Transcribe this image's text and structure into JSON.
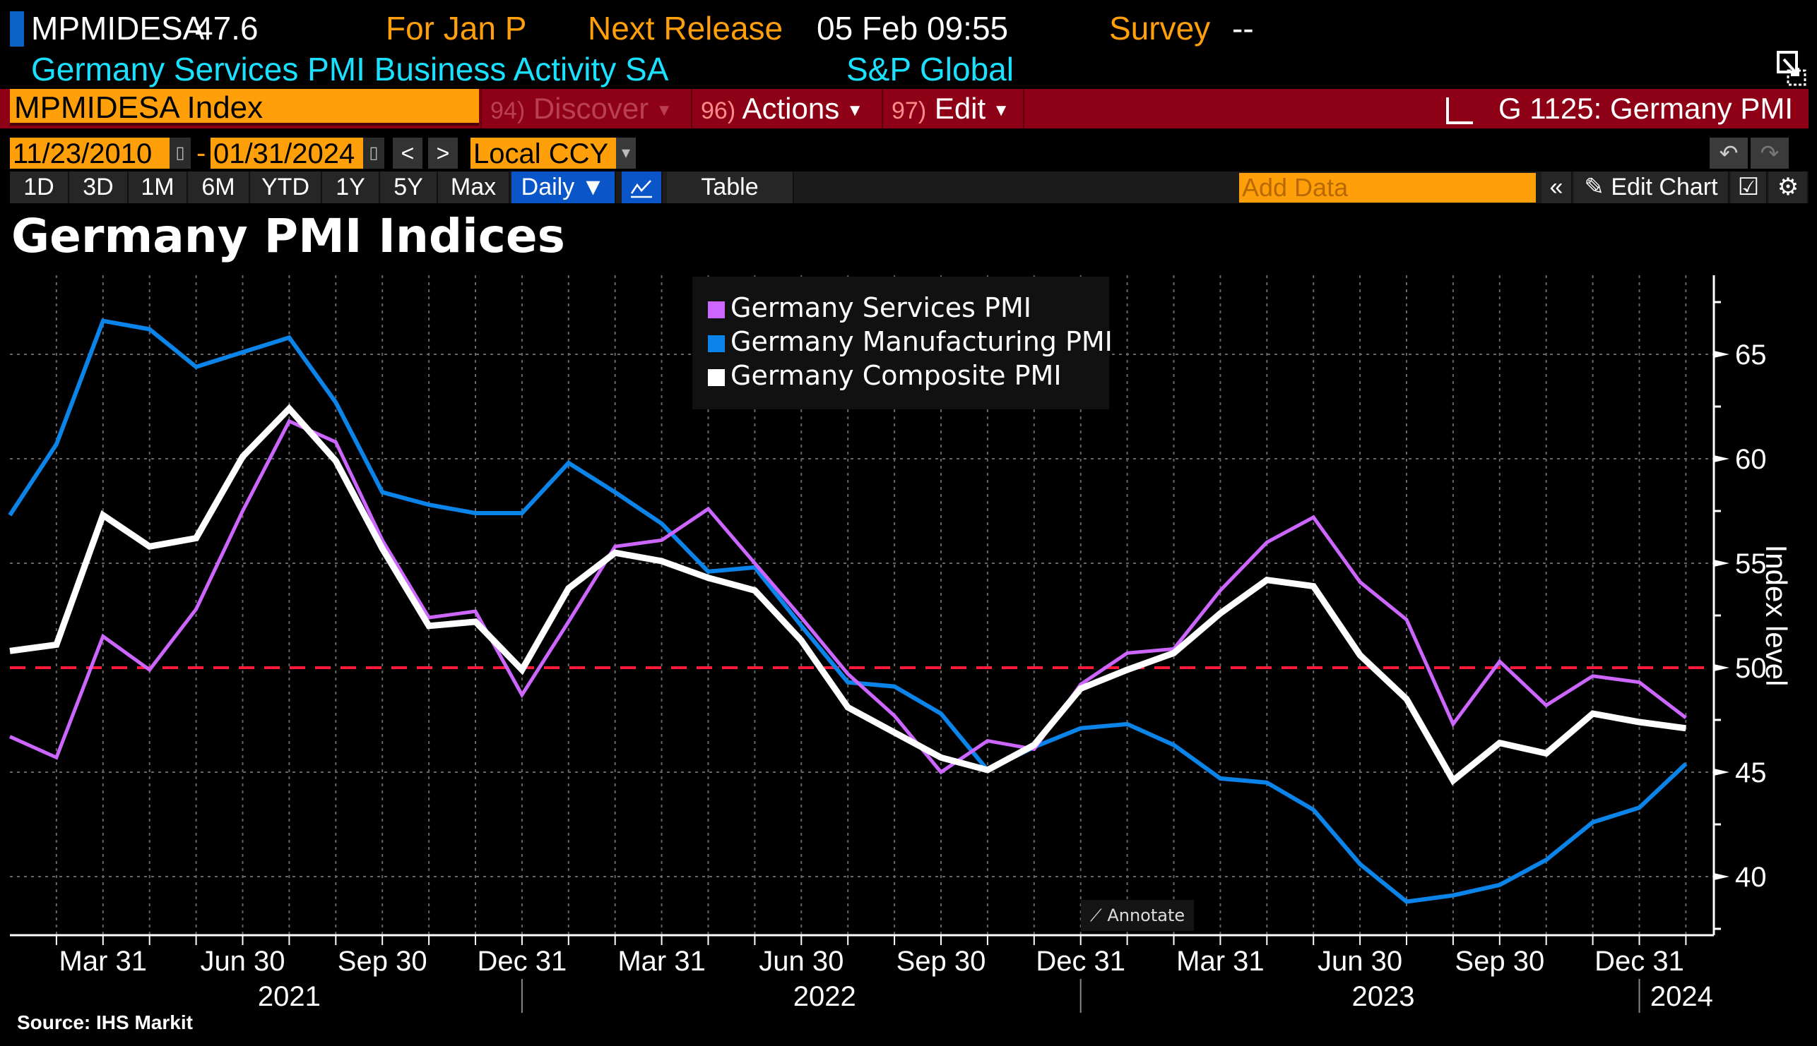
{
  "header": {
    "ticker_short": "MPMIDESA",
    "last_value": "47.6",
    "period_label": "For Jan P",
    "next_release_label": "Next Release",
    "next_release_value": "05 Feb 09:55",
    "survey_label": "Survey",
    "survey_value": "--",
    "description": "Germany Services PMI Business Activity SA",
    "source_vendor": "S&P Global"
  },
  "command_bar": {
    "ticker_input": "MPMIDESA Index",
    "discover": {
      "num": "94)",
      "label": "Discover"
    },
    "actions": {
      "num": "96)",
      "label": "Actions"
    },
    "edit": {
      "num": "97)",
      "label": "Edit"
    },
    "graph_title": "G 1125: Germany PMI"
  },
  "date_range": {
    "start": "11/23/2010",
    "end": "01/31/2024",
    "separator": "-",
    "currency": "Local CCY",
    "prev": "<",
    "next": ">"
  },
  "range_buttons": [
    "1D",
    "3D",
    "1M",
    "6M",
    "YTD",
    "1Y",
    "5Y",
    "Max"
  ],
  "frequency": "Daily ▼",
  "table_label": "Table",
  "add_data_placeholder": "Add Data",
  "collapse_label": "«",
  "edit_chart_label": "Edit Chart",
  "annotate_label": "Annotate",
  "source_label": "Source: IHS Markit",
  "colors": {
    "services": "#cc66ff",
    "manufacturing": "#0a84e8",
    "composite": "#ffffff",
    "threshold": "#ff1a3c",
    "accent_orange": "#ff9f0a",
    "bar_red": "#8e0015"
  },
  "chart_data": {
    "type": "line",
    "title": "Germany PMI Indices",
    "xlabel": "",
    "ylabel": "Index level",
    "ylim": [
      37.5,
      68
    ],
    "yticks": [
      40,
      45,
      50,
      55,
      60,
      65
    ],
    "grid": true,
    "legend_position": "top-center",
    "reference_line": {
      "y": 50,
      "style": "dashed",
      "color": "#ff1a3c"
    },
    "x": [
      "2021-01",
      "2021-02",
      "2021-03",
      "2021-04",
      "2021-05",
      "2021-06",
      "2021-07",
      "2021-08",
      "2021-09",
      "2021-10",
      "2021-11",
      "2021-12",
      "2022-01",
      "2022-02",
      "2022-03",
      "2022-04",
      "2022-05",
      "2022-06",
      "2022-07",
      "2022-08",
      "2022-09",
      "2022-10",
      "2022-11",
      "2022-12",
      "2023-01",
      "2023-02",
      "2023-03",
      "2023-04",
      "2023-05",
      "2023-06",
      "2023-07",
      "2023-08",
      "2023-09",
      "2023-10",
      "2023-11",
      "2023-12",
      "2024-01"
    ],
    "xtick_labels": [
      {
        "month": "2021-03",
        "label": "Mar 31"
      },
      {
        "month": "2021-06",
        "label": "Jun 30"
      },
      {
        "month": "2021-09",
        "label": "Sep 30"
      },
      {
        "month": "2021-12",
        "label": "Dec 31"
      },
      {
        "month": "2022-03",
        "label": "Mar 31"
      },
      {
        "month": "2022-06",
        "label": "Jun 30"
      },
      {
        "month": "2022-09",
        "label": "Sep 30"
      },
      {
        "month": "2022-12",
        "label": "Dec 31"
      },
      {
        "month": "2023-03",
        "label": "Mar 31"
      },
      {
        "month": "2023-06",
        "label": "Jun 30"
      },
      {
        "month": "2023-09",
        "label": "Sep 30"
      },
      {
        "month": "2023-12",
        "label": "Dec 31"
      }
    ],
    "year_labels": [
      {
        "label": "2021",
        "center": "2021-07"
      },
      {
        "label": "2022",
        "center": "2022-06.5"
      },
      {
        "label": "2023",
        "center": "2023-06.5"
      },
      {
        "label": "2024",
        "center": "2024-01"
      }
    ],
    "series": [
      {
        "name": "Germany Services PMI",
        "color": "#cc66ff",
        "values": [
          46.7,
          45.7,
          51.5,
          49.9,
          52.8,
          57.5,
          61.8,
          60.8,
          56.1,
          52.4,
          52.7,
          48.7,
          52.2,
          55.8,
          56.1,
          57.6,
          55.0,
          52.4,
          49.7,
          47.7,
          45.0,
          46.5,
          46.1,
          49.2,
          50.7,
          50.9,
          53.7,
          56.0,
          57.2,
          54.1,
          52.3,
          47.3,
          50.3,
          48.2,
          49.6,
          49.3,
          47.6
        ]
      },
      {
        "name": "Germany Manufacturing PMI",
        "color": "#0a84e8",
        "values": [
          57.3,
          60.7,
          66.6,
          66.2,
          64.4,
          65.1,
          65.8,
          62.7,
          58.4,
          57.8,
          57.4,
          57.4,
          59.8,
          58.4,
          56.9,
          54.6,
          54.8,
          52.0,
          49.3,
          49.1,
          47.8,
          45.1,
          46.2,
          47.1,
          47.3,
          46.3,
          44.7,
          44.5,
          43.2,
          40.6,
          38.8,
          39.1,
          39.6,
          40.8,
          42.6,
          43.3,
          45.4
        ]
      },
      {
        "name": "Germany Composite PMI",
        "color": "#ffffff",
        "values": [
          50.8,
          51.1,
          57.3,
          55.8,
          56.2,
          60.1,
          62.4,
          59.9,
          55.7,
          52.0,
          52.2,
          49.9,
          53.8,
          55.5,
          55.1,
          54.3,
          53.7,
          51.3,
          48.1,
          46.9,
          45.7,
          45.1,
          46.3,
          49.0,
          49.9,
          50.7,
          52.6,
          54.2,
          53.9,
          50.6,
          48.5,
          44.6,
          46.4,
          45.9,
          47.8,
          47.4,
          47.1
        ]
      }
    ]
  }
}
